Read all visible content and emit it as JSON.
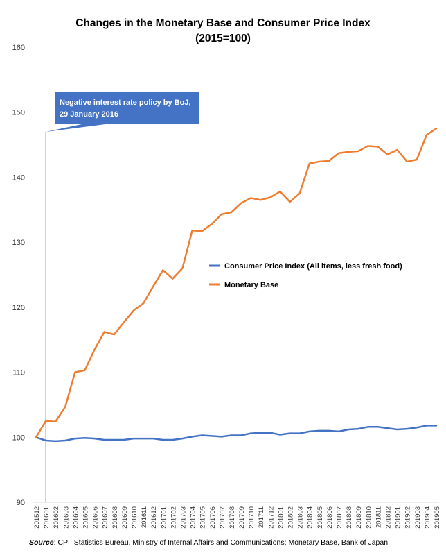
{
  "title": "Changes in the Monetary Base and Consumer Price Index",
  "subtitle": "(2015=100)",
  "source_label": "Source",
  "source_text": ": CPI, Statistics Bureau, Ministry of Internal Affairs and Communications; Monetary Base, Bank of Japan",
  "annotation": {
    "text_line1": "Negative interest rate policy by BoJ,",
    "text_line2": "29 January 2016",
    "x": "201601",
    "color": "#4472C4"
  },
  "chart_data": {
    "type": "line",
    "title": "Changes in the Monetary Base and Consumer Price Index (2015=100)",
    "ylim": [
      90,
      160
    ],
    "yticks": [
      90,
      100,
      110,
      120,
      130,
      140,
      150,
      160
    ],
    "grid": false,
    "legend_position": "center-right",
    "x": [
      "201512",
      "201601",
      "201602",
      "201603",
      "201604",
      "201605",
      "201606",
      "201607",
      "201608",
      "201609",
      "201610",
      "201611",
      "201612",
      "201701",
      "201702",
      "201703",
      "201704",
      "201705",
      "201706",
      "201707",
      "201708",
      "201709",
      "201710",
      "201711",
      "201712",
      "201801",
      "201802",
      "201803",
      "201804",
      "201805",
      "201806",
      "201807",
      "201808",
      "201809",
      "201810",
      "201811",
      "201812",
      "201901",
      "201902",
      "201903",
      "201904",
      "201905"
    ],
    "series": [
      {
        "name": "Consumer Price Index (All items, less fresh food)",
        "color": "#4472C4",
        "values": [
          100.0,
          99.5,
          99.4,
          99.5,
          99.8,
          99.9,
          99.8,
          99.6,
          99.6,
          99.6,
          99.8,
          99.8,
          99.8,
          99.6,
          99.6,
          99.8,
          100.1,
          100.3,
          100.2,
          100.1,
          100.3,
          100.3,
          100.6,
          100.7,
          100.7,
          100.4,
          100.6,
          100.6,
          100.9,
          101.0,
          101.0,
          100.9,
          101.2,
          101.3,
          101.6,
          101.6,
          101.4,
          101.2,
          101.3,
          101.5,
          101.8,
          101.8
        ]
      },
      {
        "name": "Monetary Base",
        "color": "#ED7D31",
        "values": [
          100.0,
          102.5,
          102.4,
          104.7,
          110.0,
          110.3,
          113.5,
          116.2,
          115.8,
          117.7,
          119.5,
          120.6,
          123.2,
          125.7,
          124.4,
          126.0,
          131.8,
          131.7,
          132.8,
          134.3,
          134.6,
          136.0,
          136.8,
          136.5,
          136.9,
          137.8,
          136.2,
          137.5,
          142.1,
          142.4,
          142.5,
          143.7,
          143.9,
          144.0,
          144.8,
          144.7,
          143.5,
          144.2,
          142.4,
          142.7,
          146.5,
          147.5
        ]
      }
    ]
  }
}
